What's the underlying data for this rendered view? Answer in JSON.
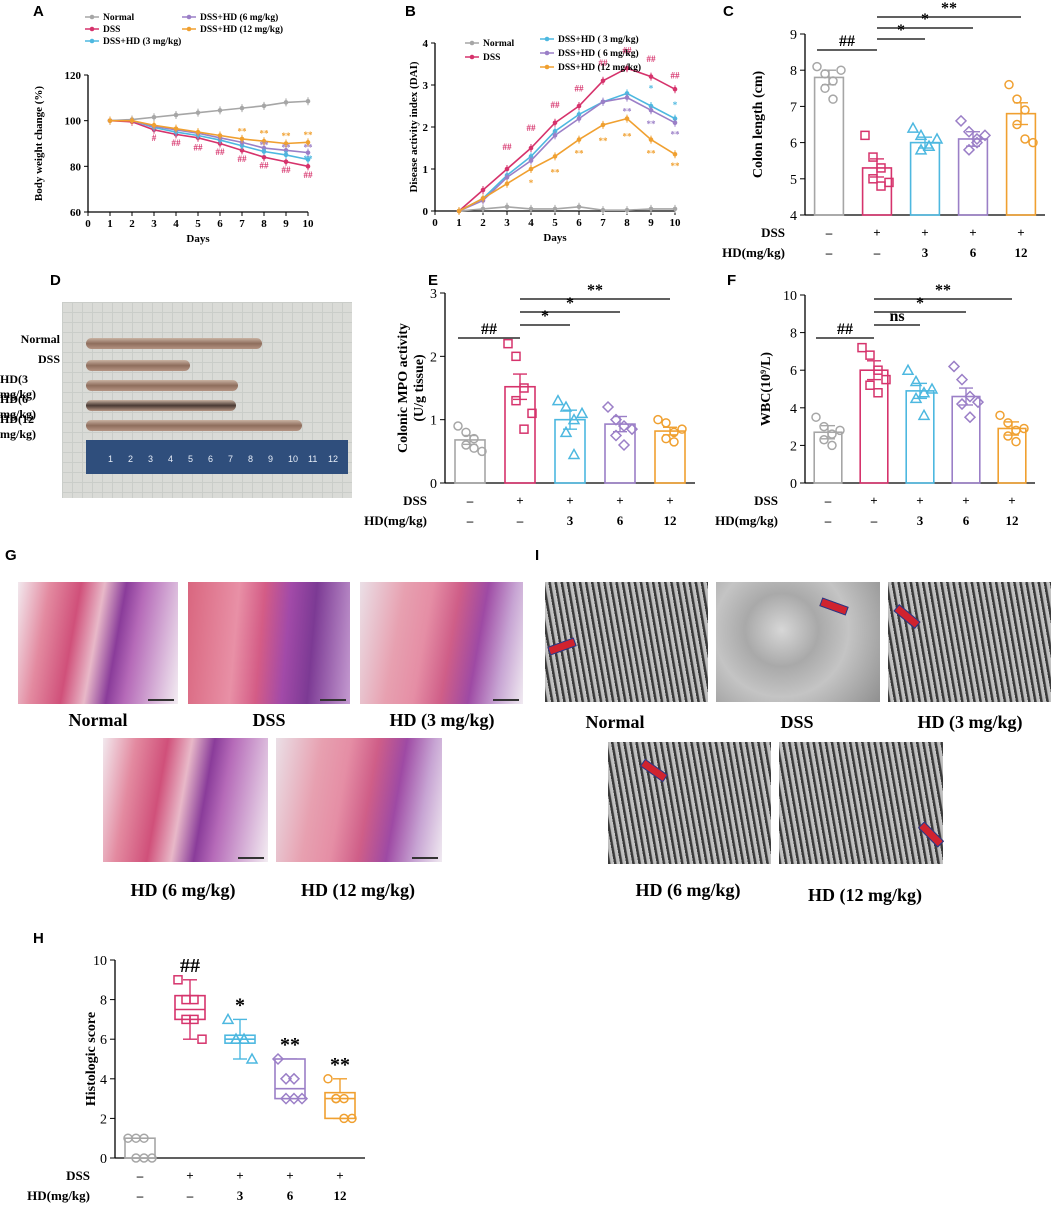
{
  "panels": {
    "A": "A",
    "B": "B",
    "C": "C",
    "D": "D",
    "E": "E",
    "F": "F",
    "G": "G",
    "H": "H",
    "I": "I"
  },
  "colors": {
    "normal": "#a6a6a6",
    "dss": "#d6336c",
    "hd3": "#4db8e0",
    "hd6": "#9b7fc7",
    "hd12": "#f0a030",
    "black": "#000000"
  },
  "chart_data": [
    {
      "id": "A",
      "type": "line",
      "xlabel": "Days",
      "ylabel": "Body weight change (%)",
      "xlim": [
        0,
        10
      ],
      "ylim": [
        60,
        120
      ],
      "xticks": [
        "0",
        "1",
        "2",
        "3",
        "4",
        "5",
        "6",
        "7",
        "8",
        "9",
        "10"
      ],
      "yticks": [
        "60",
        "80",
        "100",
        "120"
      ],
      "x": [
        1,
        2,
        3,
        4,
        5,
        6,
        7,
        8,
        9,
        10
      ],
      "series": [
        {
          "name": "Normal",
          "color": "#a6a6a6",
          "values": [
            100,
            100.5,
            101.5,
            102.5,
            103.5,
            104.5,
            105.5,
            106.5,
            108,
            108.5
          ]
        },
        {
          "name": "DSS",
          "color": "#d6336c",
          "values": [
            100,
            99.5,
            96,
            94,
            92.5,
            90,
            87,
            84,
            82,
            80
          ]
        },
        {
          "name": "DSS+HD (3 mg/kg)",
          "color": "#4db8e0",
          "values": [
            100,
            100,
            97,
            95,
            93.5,
            91.5,
            89,
            86.5,
            85,
            83
          ]
        },
        {
          "name": "DSS+HD (6 mg/kg)",
          "color": "#9b7fc7",
          "values": [
            100,
            100,
            97.5,
            96,
            94.5,
            92.5,
            90.5,
            88,
            87,
            86
          ]
        },
        {
          "name": "DSS+HD (12 mg/kg)",
          "color": "#f0a030",
          "values": [
            100,
            100,
            98,
            96.5,
            95,
            93.5,
            92,
            91,
            90,
            90.5
          ]
        }
      ],
      "annotations": [
        {
          "x": 3,
          "y": 91,
          "text": "#",
          "color": "#d6336c"
        },
        {
          "x": 4,
          "y": 89,
          "text": "##",
          "color": "#d6336c"
        },
        {
          "x": 5,
          "y": 87,
          "text": "##",
          "color": "#d6336c"
        },
        {
          "x": 6,
          "y": 85,
          "text": "##",
          "color": "#d6336c"
        },
        {
          "x": 7,
          "y": 82,
          "text": "##",
          "color": "#d6336c"
        },
        {
          "x": 8,
          "y": 79,
          "text": "##",
          "color": "#d6336c"
        },
        {
          "x": 9,
          "y": 77,
          "text": "##",
          "color": "#d6336c"
        },
        {
          "x": 10,
          "y": 75,
          "text": "##",
          "color": "#d6336c"
        },
        {
          "x": 7,
          "y": 94,
          "text": "**",
          "color": "#f0a030"
        },
        {
          "x": 8,
          "y": 93,
          "text": "**",
          "color": "#f0a030"
        },
        {
          "x": 9,
          "y": 92,
          "text": "**",
          "color": "#f0a030"
        },
        {
          "x": 10,
          "y": 92.5,
          "text": "**",
          "color": "#f0a030"
        },
        {
          "x": 8,
          "y": 88,
          "text": "**",
          "color": "#9b7fc7"
        },
        {
          "x": 9,
          "y": 87,
          "text": "**",
          "color": "#9b7fc7"
        },
        {
          "x": 10,
          "y": 87,
          "text": "**",
          "color": "#9b7fc7"
        },
        {
          "x": 8,
          "y": 85,
          "text": "*",
          "color": "#4db8e0"
        },
        {
          "x": 9,
          "y": 84,
          "text": "*",
          "color": "#4db8e0"
        },
        {
          "x": 10,
          "y": 82,
          "text": "**",
          "color": "#4db8e0"
        }
      ]
    },
    {
      "id": "B",
      "type": "line",
      "xlabel": "Days",
      "ylabel": "Disease activity index (DAI)",
      "xlim": [
        0,
        10
      ],
      "ylim": [
        0,
        4
      ],
      "xticks": [
        "0",
        "1",
        "2",
        "3",
        "4",
        "5",
        "6",
        "7",
        "8",
        "9",
        "10"
      ],
      "yticks": [
        "0",
        "1",
        "2",
        "3",
        "4"
      ],
      "x": [
        1,
        2,
        3,
        4,
        5,
        6,
        7,
        8,
        9,
        10
      ],
      "series": [
        {
          "name": "Normal",
          "color": "#a6a6a6",
          "values": [
            0,
            0.05,
            0.1,
            0.05,
            0.05,
            0.1,
            0.02,
            0.02,
            0.05,
            0.05
          ]
        },
        {
          "name": "DSS",
          "color": "#d6336c",
          "values": [
            0,
            0.5,
            1.0,
            1.5,
            2.1,
            2.5,
            3.1,
            3.4,
            3.2,
            2.9
          ]
        },
        {
          "name": "DSS+HD ( 3 mg/kg)",
          "color": "#4db8e0",
          "values": [
            0,
            0.3,
            0.85,
            1.3,
            1.9,
            2.3,
            2.6,
            2.8,
            2.5,
            2.2
          ]
        },
        {
          "name": "DSS+HD ( 6 mg/kg)",
          "color": "#9b7fc7",
          "values": [
            0,
            0.25,
            0.8,
            1.2,
            1.8,
            2.2,
            2.6,
            2.7,
            2.4,
            2.1
          ]
        },
        {
          "name": "DSS+HD (12 mg/kg)",
          "color": "#f0a030",
          "values": [
            0,
            0.3,
            0.65,
            1.0,
            1.3,
            1.7,
            2.05,
            2.2,
            1.7,
            1.35
          ]
        }
      ],
      "annotations": [
        {
          "x": 3,
          "y": 1.45,
          "text": "##",
          "color": "#d6336c"
        },
        {
          "x": 4,
          "y": 1.9,
          "text": "##",
          "color": "#d6336c"
        },
        {
          "x": 5,
          "y": 2.45,
          "text": "##",
          "color": "#d6336c"
        },
        {
          "x": 6,
          "y": 2.85,
          "text": "##",
          "color": "#d6336c"
        },
        {
          "x": 7,
          "y": 3.45,
          "text": "##",
          "color": "#d6336c"
        },
        {
          "x": 8,
          "y": 3.75,
          "text": "##",
          "color": "#d6336c"
        },
        {
          "x": 9,
          "y": 3.55,
          "text": "##",
          "color": "#d6336c"
        },
        {
          "x": 10,
          "y": 3.15,
          "text": "##",
          "color": "#d6336c"
        },
        {
          "x": 4,
          "y": 0.6,
          "text": "*",
          "color": "#f0a030"
        },
        {
          "x": 5,
          "y": 0.85,
          "text": "**",
          "color": "#f0a030"
        },
        {
          "x": 6,
          "y": 1.3,
          "text": "**",
          "color": "#f0a030"
        },
        {
          "x": 7,
          "y": 1.6,
          "text": "**",
          "color": "#f0a030"
        },
        {
          "x": 8,
          "y": 1.7,
          "text": "**",
          "color": "#f0a030"
        },
        {
          "x": 9,
          "y": 1.3,
          "text": "**",
          "color": "#f0a030"
        },
        {
          "x": 10,
          "y": 1.0,
          "text": "**",
          "color": "#f0a030"
        },
        {
          "x": 8,
          "y": 2.3,
          "text": "**",
          "color": "#9b7fc7"
        },
        {
          "x": 9,
          "y": 2.0,
          "text": "**",
          "color": "#9b7fc7"
        },
        {
          "x": 10,
          "y": 1.75,
          "text": "**",
          "color": "#9b7fc7"
        },
        {
          "x": 9,
          "y": 2.85,
          "text": "*",
          "color": "#4db8e0"
        },
        {
          "x": 10,
          "y": 2.45,
          "text": "*",
          "color": "#4db8e0"
        }
      ]
    },
    {
      "id": "C",
      "type": "bar",
      "ylabel": "Colon length (cm)",
      "ylim": [
        4,
        9
      ],
      "yticks": [
        "4",
        "5",
        "6",
        "7",
        "8",
        "9"
      ],
      "groups": [
        {
          "name": "Normal",
          "color": "#a6a6a6",
          "mean": 7.8,
          "sem": 0.2,
          "points": [
            8.1,
            7.9,
            7.7,
            7.5,
            7.2,
            8.0
          ],
          "marker": "circle"
        },
        {
          "name": "DSS",
          "color": "#d6336c",
          "mean": 5.3,
          "sem": 0.25,
          "points": [
            6.2,
            5.6,
            5.3,
            5.0,
            4.8,
            4.9
          ],
          "marker": "square"
        },
        {
          "name": "HD 3",
          "color": "#4db8e0",
          "mean": 6.0,
          "sem": 0.15,
          "points": [
            6.4,
            6.2,
            5.9,
            5.8,
            5.9,
            6.1
          ],
          "marker": "triangle"
        },
        {
          "name": "HD 6",
          "color": "#9b7fc7",
          "mean": 6.1,
          "sem": 0.2,
          "points": [
            6.6,
            6.3,
            6.0,
            5.8,
            6.1,
            6.2
          ],
          "marker": "diamond"
        },
        {
          "name": "HD 12",
          "color": "#f0a030",
          "mean": 6.8,
          "sem": 0.3,
          "points": [
            7.6,
            7.2,
            6.9,
            6.5,
            6.1,
            6.0
          ],
          "marker": "circle"
        }
      ],
      "rows": [
        {
          "label": "DSS",
          "values": [
            "–",
            "+",
            "+",
            "+",
            "+"
          ]
        },
        {
          "label": "HD(mg/kg)",
          "values": [
            "–",
            "–",
            "3",
            "6",
            "12"
          ]
        }
      ],
      "sig": [
        {
          "from": 0,
          "to": 1,
          "text": "##",
          "level": 0
        },
        {
          "from": 1,
          "to": 2,
          "text": "*",
          "level": 1
        },
        {
          "from": 1,
          "to": 3,
          "text": "*",
          "level": 2
        },
        {
          "from": 1,
          "to": 4,
          "text": "**",
          "level": 3
        }
      ]
    },
    {
      "id": "E",
      "type": "bar",
      "ylabel": "Colonic MPO activity",
      "ylabel2": "(U/g tissue)",
      "ylim": [
        0,
        3
      ],
      "yticks": [
        "0",
        "1",
        "2",
        "3"
      ],
      "groups": [
        {
          "name": "Normal",
          "color": "#a6a6a6",
          "mean": 0.68,
          "sem": 0.07,
          "points": [
            0.9,
            0.8,
            0.7,
            0.6,
            0.55,
            0.5
          ],
          "marker": "circle"
        },
        {
          "name": "DSS",
          "color": "#d6336c",
          "mean": 1.52,
          "sem": 0.2,
          "points": [
            2.2,
            2.0,
            1.5,
            1.3,
            0.85,
            1.1
          ],
          "marker": "square"
        },
        {
          "name": "HD 3",
          "color": "#4db8e0",
          "mean": 1.0,
          "sem": 0.15,
          "points": [
            1.3,
            1.2,
            1.0,
            0.8,
            0.45,
            1.1
          ],
          "marker": "triangle"
        },
        {
          "name": "HD 6",
          "color": "#9b7fc7",
          "mean": 0.93,
          "sem": 0.12,
          "points": [
            1.2,
            1.0,
            0.9,
            0.75,
            0.6,
            0.85
          ],
          "marker": "diamond"
        },
        {
          "name": "HD 12",
          "color": "#f0a030",
          "mean": 0.82,
          "sem": 0.06,
          "points": [
            1.0,
            0.95,
            0.8,
            0.7,
            0.65,
            0.85
          ],
          "marker": "circle"
        }
      ],
      "rows": [
        {
          "label": "DSS",
          "values": [
            "–",
            "+",
            "+",
            "+",
            "+"
          ]
        },
        {
          "label": "HD(mg/kg)",
          "values": [
            "–",
            "–",
            "3",
            "6",
            "12"
          ]
        }
      ],
      "sig": [
        {
          "from": 0,
          "to": 1,
          "text": "##",
          "level": 0
        },
        {
          "from": 1,
          "to": 2,
          "text": "*",
          "level": 1
        },
        {
          "from": 1,
          "to": 3,
          "text": "*",
          "level": 2
        },
        {
          "from": 1,
          "to": 4,
          "text": "**",
          "level": 3
        }
      ]
    },
    {
      "id": "F",
      "type": "bar",
      "ylabel": "WBC(10⁹/L)",
      "ylim": [
        0,
        10
      ],
      "yticks": [
        "0",
        "2",
        "4",
        "6",
        "8",
        "10"
      ],
      "groups": [
        {
          "name": "Normal",
          "color": "#a6a6a6",
          "mean": 2.7,
          "sem": 0.35,
          "points": [
            3.5,
            3.0,
            2.6,
            2.3,
            2.0,
            2.8
          ],
          "marker": "circle"
        },
        {
          "name": "DSS",
          "color": "#d6336c",
          "mean": 6.0,
          "sem": 0.5,
          "points": [
            7.2,
            6.8,
            6.0,
            5.2,
            4.8,
            5.5
          ],
          "marker": "square"
        },
        {
          "name": "HD 3",
          "color": "#4db8e0",
          "mean": 4.9,
          "sem": 0.4,
          "points": [
            6.0,
            5.4,
            4.8,
            4.5,
            3.6,
            5.0
          ],
          "marker": "triangle"
        },
        {
          "name": "HD 6",
          "color": "#9b7fc7",
          "mean": 4.6,
          "sem": 0.45,
          "points": [
            6.2,
            5.5,
            4.6,
            4.2,
            3.5,
            4.3
          ],
          "marker": "diamond"
        },
        {
          "name": "HD 12",
          "color": "#f0a030",
          "mean": 2.9,
          "sem": 0.35,
          "points": [
            3.6,
            3.2,
            2.8,
            2.5,
            2.2,
            2.9
          ],
          "marker": "circle"
        }
      ],
      "rows": [
        {
          "label": "DSS",
          "values": [
            "–",
            "+",
            "+",
            "+",
            "+"
          ]
        },
        {
          "label": "HD(mg/kg)",
          "values": [
            "–",
            "–",
            "3",
            "6",
            "12"
          ]
        }
      ],
      "sig": [
        {
          "from": 0,
          "to": 1,
          "text": "##",
          "level": 0
        },
        {
          "from": 1,
          "to": 2,
          "text": "ns",
          "level": 1
        },
        {
          "from": 1,
          "to": 3,
          "text": "*",
          "level": 2
        },
        {
          "from": 1,
          "to": 4,
          "text": "**",
          "level": 3
        }
      ]
    },
    {
      "id": "H",
      "type": "box",
      "ylabel": "Histologic score",
      "ylim": [
        0,
        10
      ],
      "yticks": [
        "0",
        "2",
        "4",
        "6",
        "8",
        "10"
      ],
      "groups": [
        {
          "name": "Normal",
          "color": "#a6a6a6",
          "min": 0,
          "q1": 0,
          "median": 0,
          "q3": 1,
          "max": 1,
          "points": [
            1,
            1,
            1,
            0,
            0,
            0
          ],
          "marker": "circle",
          "sig": ""
        },
        {
          "name": "DSS",
          "color": "#d6336c",
          "min": 6,
          "q1": 7,
          "median": 7.5,
          "q3": 8.2,
          "max": 9,
          "points": [
            9,
            8,
            8,
            7,
            7,
            6
          ],
          "marker": "square",
          "sig": "##"
        },
        {
          "name": "HD 3",
          "color": "#4db8e0",
          "min": 5,
          "q1": 5.8,
          "median": 6,
          "q3": 6.2,
          "max": 7,
          "points": [
            7,
            6,
            6,
            6,
            6,
            5
          ],
          "marker": "triangle",
          "sig": "*"
        },
        {
          "name": "HD 6",
          "color": "#9b7fc7",
          "min": 3,
          "q1": 3,
          "median": 3.5,
          "q3": 5,
          "max": 5,
          "points": [
            5,
            4,
            4,
            3,
            3,
            3
          ],
          "marker": "diamond",
          "sig": "**"
        },
        {
          "name": "HD 12",
          "color": "#f0a030",
          "min": 2,
          "q1": 2,
          "median": 3,
          "q3": 3.3,
          "max": 4,
          "points": [
            4,
            3,
            3,
            3,
            2,
            2
          ],
          "marker": "circle",
          "sig": "**"
        }
      ],
      "rows": [
        {
          "label": "DSS",
          "values": [
            "–",
            "+",
            "+",
            "+",
            "+"
          ]
        },
        {
          "label": "HD(mg/kg)",
          "values": [
            "–",
            "–",
            "3",
            "6",
            "12"
          ]
        }
      ]
    }
  ],
  "photo": {
    "labels": [
      "Normal",
      "DSS",
      "HD(3 mg/kg)",
      "HD(6 mg/kg)",
      "HD(12 mg/kg)"
    ],
    "ruler": [
      "1",
      "2",
      "3",
      "4",
      "5",
      "6",
      "7",
      "8",
      "9",
      "10",
      "11",
      "12"
    ]
  },
  "histology": {
    "labels": [
      "Normal",
      "DSS",
      "HD (3 mg/kg)",
      "HD (6 mg/kg)",
      "HD (12 mg/kg)"
    ]
  },
  "tem": {
    "labels": [
      "Normal",
      "DSS",
      "HD (3 mg/kg)",
      "HD (6 mg/kg)",
      "HD (12 mg/kg)"
    ]
  }
}
